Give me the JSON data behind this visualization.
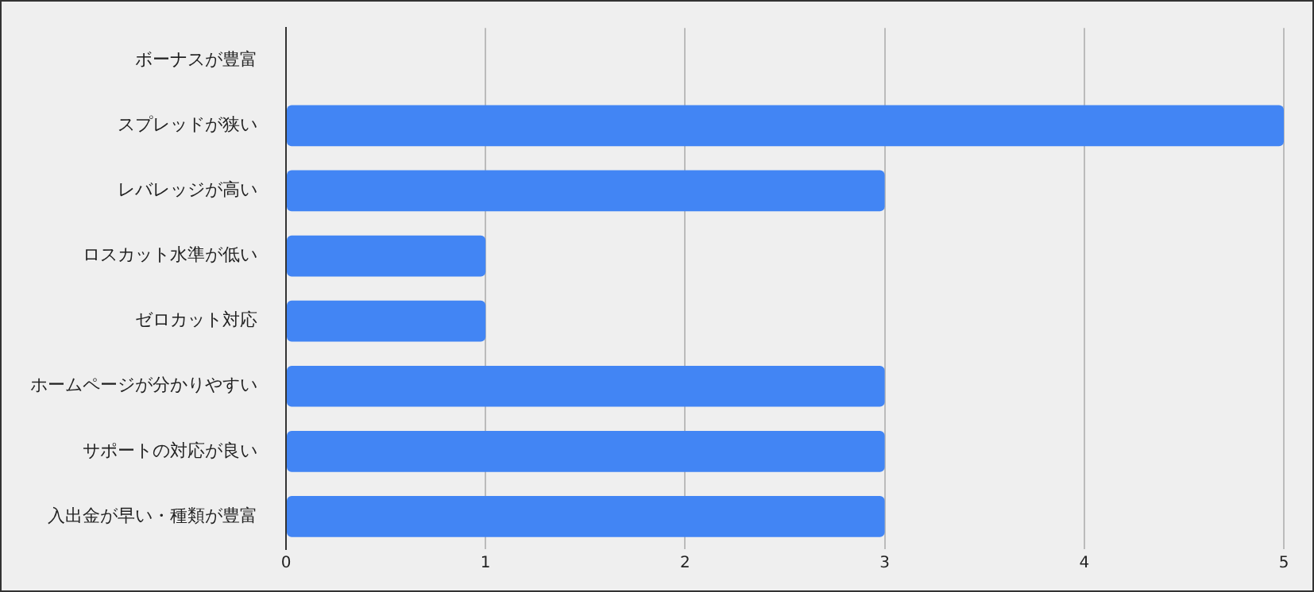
{
  "chart_data": {
    "type": "bar",
    "orientation": "horizontal",
    "categories": [
      "ボーナスが豊富",
      "スプレッドが狭い",
      "レバレッジが高い",
      "ロスカット水準が低い",
      "ゼロカット対応",
      "ホームページが分かりやすい",
      "サポートの対応が良い",
      "入出金が早い・種類が豊富"
    ],
    "values": [
      0,
      5,
      3,
      1,
      1,
      3,
      3,
      3
    ],
    "color": "#4285f4",
    "xlim": [
      0,
      5
    ],
    "xticks": [
      0,
      1,
      2,
      3,
      4,
      5
    ],
    "grid": "x"
  }
}
